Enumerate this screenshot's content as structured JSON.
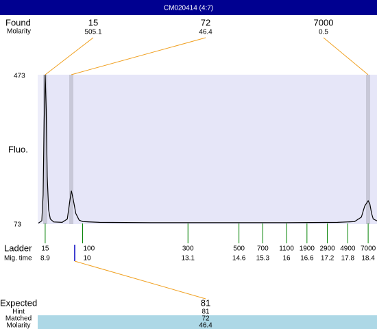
{
  "title": "CM020414 (4:7)",
  "found": {
    "label": "Found",
    "molarity_label": "Molarity",
    "peaks": [
      {
        "size": 15,
        "molarity": 505.1
      },
      {
        "size": 72,
        "molarity": 46.4
      },
      {
        "size": 7000,
        "molarity": 0.5
      }
    ]
  },
  "plot": {
    "y_label": "Fluo.",
    "ylim": [
      73,
      473
    ],
    "yticks": [
      473,
      73
    ],
    "xlim": [
      8.68,
      18.66
    ],
    "trace": {
      "x": [
        8.7,
        8.8,
        8.84,
        8.87,
        8.9,
        8.93,
        8.96,
        9.0,
        9.05,
        9.15,
        9.4,
        9.55,
        9.62,
        9.67,
        9.72,
        9.8,
        9.9,
        10.0,
        10.5,
        12,
        14,
        16,
        17.5,
        18.0,
        18.2,
        18.3,
        18.4,
        18.45,
        18.5,
        18.55,
        18.66
      ],
      "y": [
        74,
        80,
        150,
        350,
        473,
        380,
        200,
        110,
        85,
        77,
        76,
        85,
        130,
        161,
        140,
        100,
        82,
        78,
        76,
        75,
        75,
        75,
        76,
        78,
        90,
        120,
        134,
        125,
        100,
        85,
        80
      ]
    }
  },
  "ladder": {
    "label": "Ladder",
    "time_label": "Mig. time",
    "sizes": [
      15,
      100,
      300,
      500,
      700,
      1100,
      1900,
      2900,
      4900,
      7000
    ],
    "times": [
      8.9,
      10,
      13.1,
      14.6,
      15.3,
      16,
      16.6,
      17.2,
      17.8,
      18.4
    ]
  },
  "expected": {
    "label": "Expected",
    "value": 81,
    "hint_label": "Hint",
    "hint": 81,
    "matched_label": "Matched",
    "matched": 72,
    "molarity_label": "Molarity",
    "molarity": 46.4
  }
}
